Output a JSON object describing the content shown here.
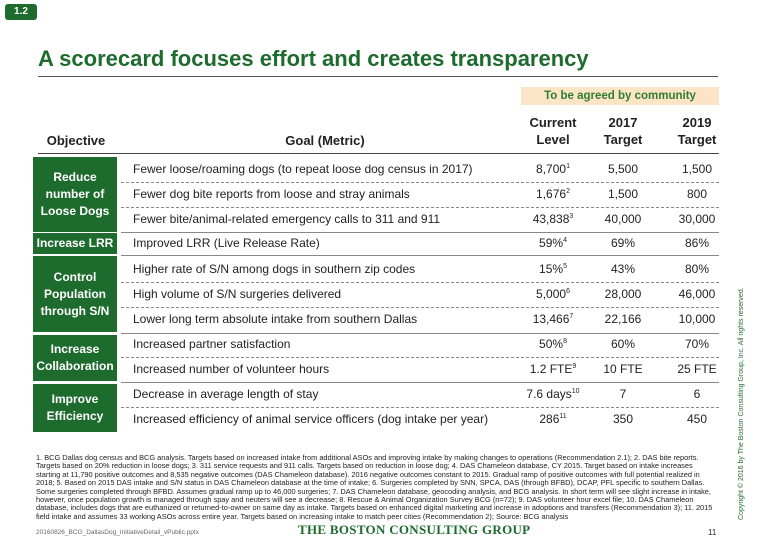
{
  "badge": "1.2",
  "title": "A scorecard focuses effort and creates transparency",
  "agreed_label": "To be agreed by community",
  "headers": {
    "objective": "Objective",
    "goal": "Goal (Metric)",
    "current_l1": "Current",
    "current_l2": "Level",
    "t2017_l1": "2017",
    "t2017_l2": "Target",
    "t2019_l1": "2019",
    "t2019_l2": "Target"
  },
  "categories": [
    "Reduce number of Loose Dogs",
    "Increase LRR",
    "Control Population through S/N",
    "Increase Collaboration",
    "Improve Efficiency"
  ],
  "rows": [
    {
      "goal": "Fewer loose/roaming dogs (to repeat loose dog census in 2017)",
      "current": "8,700",
      "note": "1",
      "t2017": "5,500",
      "t2019": "1,500"
    },
    {
      "goal": "Fewer dog bite reports from loose and stray animals",
      "current": "1,676",
      "note": "2",
      "t2017": "1,500",
      "t2019": "800"
    },
    {
      "goal": "Fewer bite/animal-related emergency calls to 311 and 911",
      "current": "43,838",
      "note": "3",
      "t2017": "40,000",
      "t2019": "30,000"
    },
    {
      "goal": "Improved LRR (Live Release Rate)",
      "current": "59%",
      "note": "4",
      "t2017": "69%",
      "t2019": "86%"
    },
    {
      "goal": "Higher rate of S/N among dogs in southern zip codes",
      "current": "15%",
      "note": "5",
      "t2017": "43%",
      "t2019": "80%"
    },
    {
      "goal": "High volume of S/N surgeries delivered",
      "current": "5,000",
      "note": "6",
      "t2017": "28,000",
      "t2019": "46,000"
    },
    {
      "goal": "Lower long term absolute intake from southern Dallas",
      "current": "13,466",
      "note": "7",
      "t2017": "22,166",
      "t2019": "10,000"
    },
    {
      "goal": "Increased partner satisfaction",
      "current": "50%",
      "note": "8",
      "t2017": "60%",
      "t2019": "70%"
    },
    {
      "goal": "Increased number of volunteer hours",
      "current": "1.2 FTE",
      "note": "9",
      "t2017": "10 FTE",
      "t2019": "25 FTE"
    },
    {
      "goal": "Decrease in average length of stay",
      "current": "7.6 days",
      "note": "10",
      "t2017": "7",
      "t2019": "6"
    },
    {
      "goal": "Increased efficiency of animal service officers (dog intake per year)",
      "current": "286",
      "note": "11",
      "t2017": "350",
      "t2019": "450"
    }
  ],
  "footnote": "1. BCG Dallas dog census and BCG analysis. Targets based on increased intake from additional ASOs and improving intake by making changes to operations (Recommendation 2.1); 2. DAS bite reports. Targets based on 20% reduction in loose dogs; 3. 311 service requests and 911 calls. Targets based on reduction in loose dog; 4. DAS Chameleon database, CY 2015. Target based on intake increases starting at 11,790 positive outcomes and 8,535 negative outcomes (DAS Chameleon database). 2016 negative outcomes constant to 2015. Gradual ramp of positive outcomes with full potential realized in 2018; 5. Based on 2015 DAS intake and S/N status in DAS Chameleon database at the time of intake; 6. Surgeries completed by SNN, SPCA, DAS (through BFBD), DCAP, PFL specific to southern Dallas. Some surgeries completed through BFBD. Assumes gradual ramp up to 46,000 surgeries; 7. DAS Chameleon database, geocoding analysis, and BCG analysis. In short term will see slight increase in intake, however, once population growth is managed through spay and neuters will see a decrease; 8. Rescue & Animal Organization Survey BCG (n=72); 9. DAS volunteer hour excel file; 10. DAS Chameleon database, includes dogs that are euthanized or returned-to-owner on same day as intake. Targets based on enhanced digital marketing and increase in adoptions and transfers (Recommendation 3); 11. 2015 field intake and assumes 33 working ASOs across entire year. Targets based on increasing intake to match peer cities (Recommendation 2); Source: BCG analysis",
  "filename": "20160826_BCG_DallasDog_InitiativeDetail_vPublic.pptx",
  "brand": "THE BOSTON CONSULTING GROUP",
  "page_number": "11",
  "copyright": "Copyright © 2016 by The Boston Consulting Group, Inc. All rights reserved.",
  "colors": {
    "accent": "#1e6b2e",
    "highlight": "#fbe5c6"
  }
}
